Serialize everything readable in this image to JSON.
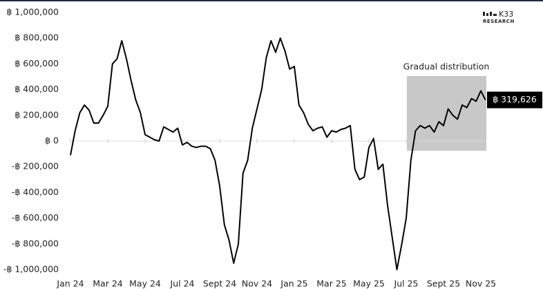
{
  "chart_data": {
    "type": "line",
    "annotation": "Gradual distribution",
    "logo": {
      "mark": "K33",
      "text": "RESEARCH"
    },
    "categories": [
      "Jan 24",
      null,
      null,
      null,
      null,
      null,
      null,
      null,
      "Mar 24",
      null,
      null,
      null,
      null,
      null,
      null,
      null,
      "May 24",
      null,
      null,
      null,
      null,
      null,
      null,
      null,
      "Jul 24",
      null,
      null,
      null,
      null,
      null,
      null,
      null,
      "Sept 24",
      null,
      null,
      null,
      null,
      null,
      null,
      null,
      "Nov 24",
      null,
      null,
      null,
      null,
      null,
      null,
      null,
      "Jan 25",
      null,
      null,
      null,
      null,
      null,
      null,
      null,
      "Mar 25",
      null,
      null,
      null,
      null,
      null,
      null,
      null,
      "May 25",
      null,
      null,
      null,
      null,
      null,
      null,
      null,
      "Jul 25",
      null,
      null,
      null,
      null,
      null,
      null,
      null,
      "Sept 25",
      null,
      null,
      null,
      null,
      null,
      null,
      null,
      "Nov 25",
      null
    ],
    "series": [
      {
        "color": "#000000",
        "values": [
          -110000,
          80000,
          220000,
          280000,
          240000,
          140000,
          140000,
          200000,
          270000,
          600000,
          640000,
          780000,
          640000,
          470000,
          320000,
          220000,
          50000,
          30000,
          10000,
          0,
          110000,
          90000,
          70000,
          100000,
          -30000,
          -10000,
          -40000,
          -50000,
          -40000,
          -40000,
          -60000,
          -150000,
          -350000,
          -650000,
          -770000,
          -950000,
          -800000,
          -250000,
          -150000,
          100000,
          250000,
          400000,
          650000,
          780000,
          690000,
          800000,
          700000,
          560000,
          580000,
          280000,
          220000,
          130000,
          80000,
          100000,
          110000,
          30000,
          80000,
          70000,
          90000,
          100000,
          120000,
          -220000,
          -300000,
          -280000,
          -50000,
          20000,
          -220000,
          -180000,
          -500000,
          -750000,
          -1000000,
          -810000,
          -600000,
          -150000,
          80000,
          120000,
          100000,
          120000,
          70000,
          150000,
          120000,
          250000,
          200000,
          170000,
          280000,
          260000,
          330000,
          310000,
          390000,
          319626
        ],
        "value_labels": [
          null,
          null,
          null,
          null,
          null,
          null,
          null,
          null,
          null,
          null,
          null,
          null,
          null,
          null,
          null,
          null,
          null,
          null,
          null,
          null,
          null,
          null,
          null,
          null,
          null,
          null,
          null,
          null,
          null,
          null,
          null,
          null,
          null,
          null,
          null,
          null,
          null,
          null,
          null,
          null,
          null,
          null,
          null,
          null,
          null,
          null,
          null,
          null,
          null,
          null,
          null,
          null,
          null,
          null,
          null,
          null,
          null,
          null,
          null,
          null,
          null,
          null,
          null,
          null,
          null,
          null,
          null,
          null,
          null,
          null,
          null,
          null,
          null,
          null,
          null,
          null,
          null,
          null,
          null,
          null,
          null,
          null,
          null,
          null,
          null,
          null,
          null,
          null,
          null,
          "฿ 319,626"
        ]
      }
    ],
    "ylim": [
      -1000000,
      1000000
    ],
    "yticks": [
      {
        "value": 1000000,
        "label": "฿ 1,000,000"
      },
      {
        "value": 800000,
        "label": "฿ 800,000"
      },
      {
        "value": 600000,
        "label": "฿ 600,000"
      },
      {
        "value": 400000,
        "label": "฿ 400,000"
      },
      {
        "value": 200000,
        "label": "฿ 200,000"
      },
      {
        "value": 0,
        "label": "฿ 0"
      },
      {
        "value": -200000,
        "label": "-฿ 200,000"
      },
      {
        "value": -400000,
        "label": "-฿ 400,000"
      },
      {
        "value": -600000,
        "label": "-฿ 600,000"
      },
      {
        "value": -800000,
        "label": "-฿ 800,000"
      },
      {
        "value": -1000000,
        "label": "-฿ 1,000,000"
      }
    ],
    "grid": false
  }
}
